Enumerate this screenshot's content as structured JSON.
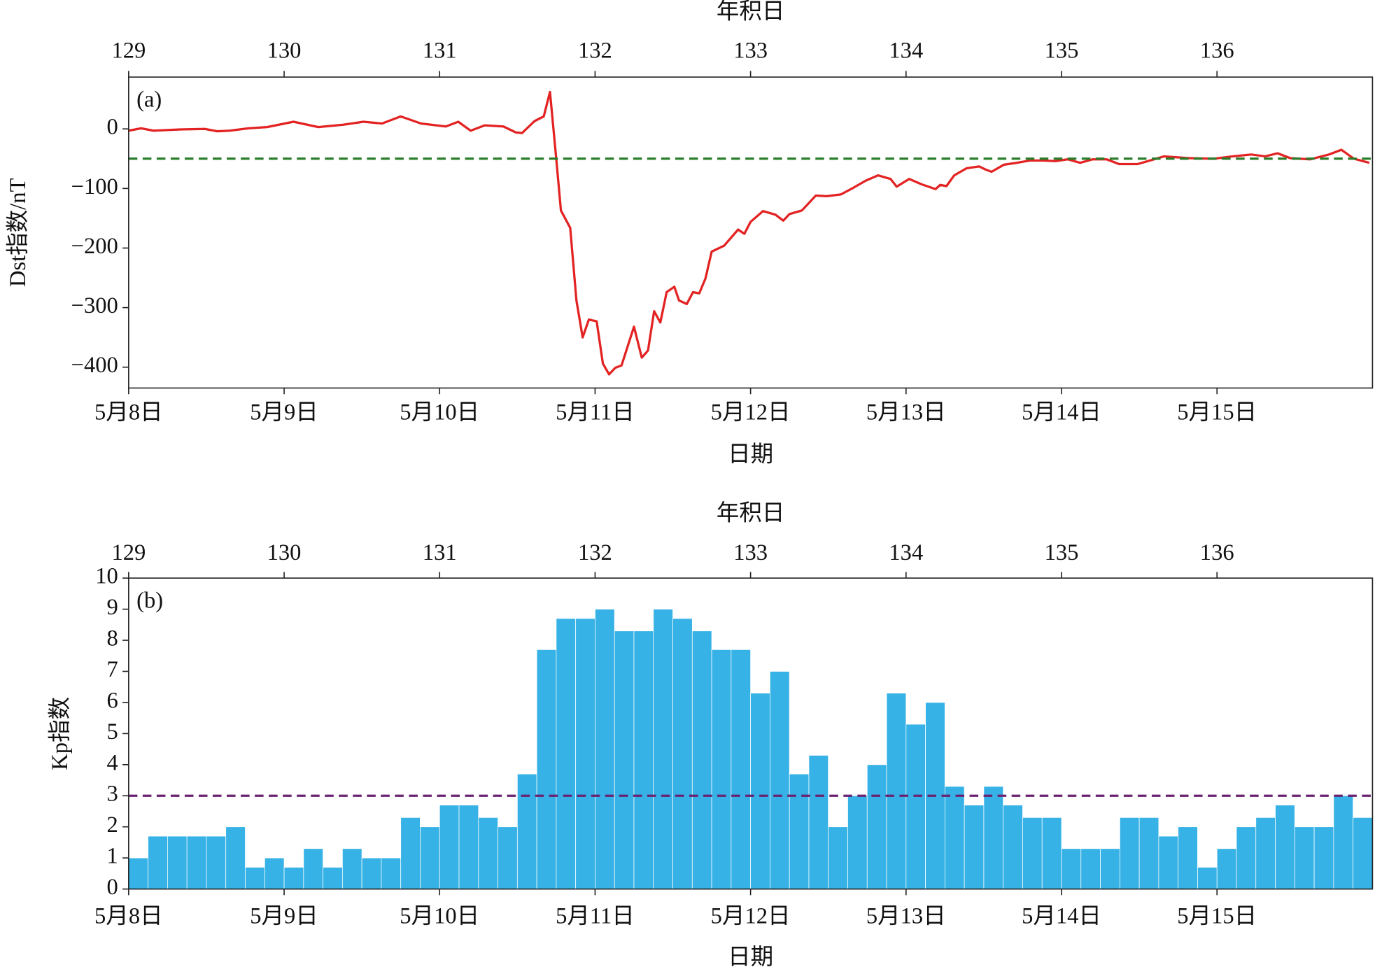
{
  "chart_data": [
    {
      "type": "line",
      "panel_label": "(a)",
      "x2label": "年积日",
      "xlabel": "日期",
      "ylabel": "Dst指数/nT",
      "xlim": [
        129,
        137
      ],
      "xticks": [
        {
          "value": 129,
          "label": "5月8日"
        },
        {
          "value": 130,
          "label": "5月9日"
        },
        {
          "value": 131,
          "label": "5月10日"
        },
        {
          "value": 132,
          "label": "5月11日"
        },
        {
          "value": 133,
          "label": "5月12日"
        },
        {
          "value": 134,
          "label": "5月13日"
        },
        {
          "value": 135,
          "label": "5月14日"
        },
        {
          "value": 136,
          "label": "5月15日"
        }
      ],
      "x2ticks": [
        129,
        130,
        131,
        132,
        133,
        134,
        135,
        136
      ],
      "ylim": [
        -435,
        87
      ],
      "yticks": [
        0,
        {
          "value": -100,
          "label": "−100"
        },
        {
          "value": -200,
          "label": "−200"
        },
        {
          "value": -300,
          "label": "−300"
        },
        {
          "value": -400,
          "label": "−400"
        }
      ],
      "color": "#e32222",
      "threshold": -50,
      "threshold_color": "#2a7d2a",
      "x": [
        129.0,
        129.08,
        129.16,
        129.33,
        129.49,
        129.57,
        129.65,
        129.77,
        129.89,
        130.06,
        130.22,
        130.38,
        130.51,
        130.63,
        130.75,
        130.88,
        131.04,
        131.12,
        131.2,
        131.29,
        131.41,
        131.49,
        131.53,
        131.61,
        131.67,
        131.71,
        131.75,
        131.78,
        131.84,
        131.88,
        131.92,
        131.96,
        132.01,
        132.05,
        132.09,
        132.13,
        132.17,
        132.25,
        132.3,
        132.34,
        132.38,
        132.42,
        132.46,
        132.51,
        132.54,
        132.59,
        132.63,
        132.67,
        132.71,
        132.75,
        132.83,
        132.92,
        132.96,
        133.0,
        133.08,
        133.16,
        133.21,
        133.25,
        133.33,
        133.42,
        133.49,
        133.58,
        133.66,
        133.74,
        133.82,
        133.9,
        133.94,
        134.02,
        134.1,
        134.19,
        134.22,
        134.26,
        134.31,
        134.39,
        134.47,
        134.51,
        134.55,
        134.63,
        134.71,
        134.8,
        134.88,
        134.96,
        135.04,
        135.12,
        135.2,
        135.29,
        135.37,
        135.49,
        135.57,
        135.66,
        135.82,
        135.98,
        136.1,
        136.22,
        136.31,
        136.39,
        136.47,
        136.6,
        136.72,
        136.8,
        136.88,
        136.98
      ],
      "values": [
        -3,
        1,
        -3,
        -1,
        0,
        -4,
        -3,
        1,
        3,
        12,
        3,
        7,
        12,
        9,
        21,
        9,
        4,
        12,
        -3,
        6,
        4,
        -6,
        -7,
        13,
        21,
        62,
        -49,
        -137,
        -166,
        -288,
        -350,
        -320,
        -323,
        -394,
        -412,
        -401,
        -397,
        -332,
        -384,
        -372,
        -306,
        -325,
        -274,
        -265,
        -288,
        -294,
        -274,
        -276,
        -251,
        -206,
        -196,
        -169,
        -176,
        -156,
        -138,
        -144,
        -154,
        -143,
        -137,
        -112,
        -113,
        -110,
        -99,
        -87,
        -78,
        -84,
        -97,
        -84,
        -93,
        -101,
        -94,
        -96,
        -78,
        -66,
        -63,
        -68,
        -72,
        -60,
        -57,
        -53,
        -53,
        -54,
        -51,
        -57,
        -51,
        -51,
        -59,
        -59,
        -53,
        -46,
        -49,
        -50,
        -46,
        -43,
        -46,
        -41,
        -49,
        -51,
        -43,
        -35,
        -50,
        -57
      ]
    },
    {
      "type": "histogram",
      "panel_label": "(b)",
      "x2label": "年积日",
      "xlabel": "日期",
      "ylabel": "Kp指数",
      "xlim": [
        129,
        137
      ],
      "xticks": [
        {
          "value": 129,
          "label": "5月8日"
        },
        {
          "value": 130,
          "label": "5月9日"
        },
        {
          "value": 131,
          "label": "5月10日"
        },
        {
          "value": 132,
          "label": "5月11日"
        },
        {
          "value": 133,
          "label": "5月12日"
        },
        {
          "value": 134,
          "label": "5月13日"
        },
        {
          "value": 135,
          "label": "5月14日"
        },
        {
          "value": 136,
          "label": "5月15日"
        }
      ],
      "x2ticks": [
        129,
        130,
        131,
        132,
        133,
        134,
        135,
        136
      ],
      "ylim": [
        0,
        10
      ],
      "yticks": [
        0,
        1,
        2,
        3,
        4,
        5,
        6,
        7,
        8,
        9,
        10
      ],
      "color": "#36b2e6",
      "threshold": 3,
      "threshold_color": "#6a2270",
      "bins": [
        129,
        129.125,
        129.25,
        129.375,
        129.5,
        129.625,
        129.75,
        129.875,
        130,
        130.125,
        130.25,
        130.375,
        130.5,
        130.625,
        130.75,
        130.875,
        131,
        131.125,
        131.25,
        131.375,
        131.5,
        131.625,
        131.75,
        131.875,
        132,
        132.125,
        132.25,
        132.375,
        132.5,
        132.625,
        132.75,
        132.875,
        133,
        133.125,
        133.25,
        133.375,
        133.5,
        133.625,
        133.75,
        133.875,
        134,
        134.125,
        134.25,
        134.375,
        134.5,
        134.625,
        134.75,
        134.875,
        135,
        135.125,
        135.25,
        135.375,
        135.5,
        135.625,
        135.75,
        135.875,
        136,
        136.125,
        136.25,
        136.375,
        136.5,
        136.625,
        136.75,
        136.875,
        137
      ],
      "values": [
        1.0,
        1.7,
        1.7,
        1.7,
        1.7,
        2.0,
        0.7,
        1.0,
        0.7,
        1.3,
        0.7,
        1.3,
        1.0,
        1.0,
        2.3,
        2.0,
        2.7,
        2.7,
        2.3,
        2.0,
        3.7,
        7.7,
        8.7,
        8.7,
        9.0,
        8.3,
        8.3,
        9.0,
        8.7,
        8.3,
        7.7,
        7.7,
        6.3,
        7.0,
        3.7,
        4.3,
        2.0,
        3.0,
        4.0,
        6.3,
        5.3,
        6.0,
        3.3,
        2.7,
        3.3,
        2.7,
        2.3,
        2.3,
        1.3,
        1.3,
        1.3,
        2.3,
        2.3,
        1.7,
        2.0,
        0.7,
        1.3,
        2.0,
        2.3,
        2.7,
        2.0,
        2.0,
        3.0,
        2.3
      ]
    }
  ]
}
